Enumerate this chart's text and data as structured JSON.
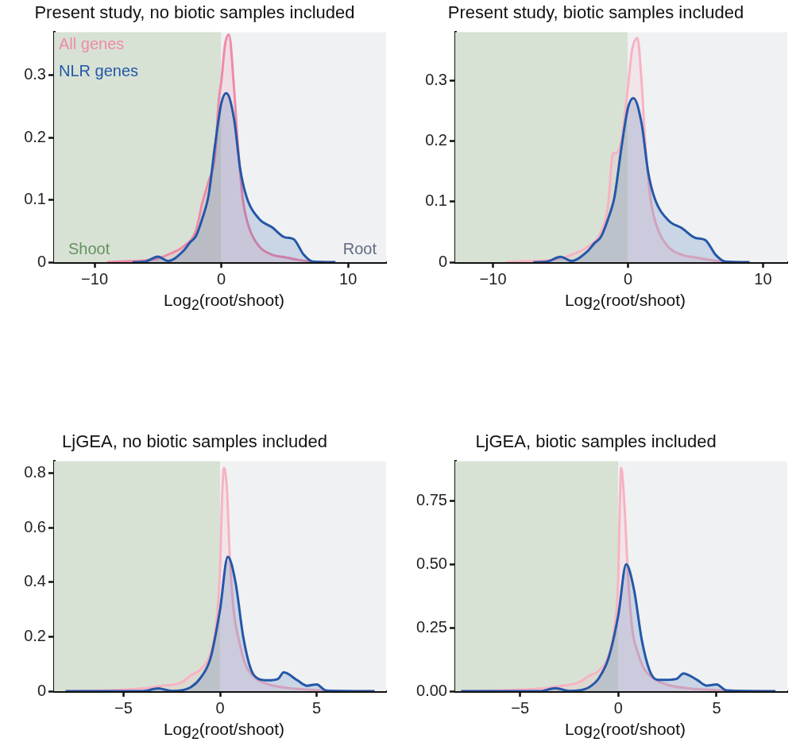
{
  "chart_data": [
    {
      "type": "area",
      "title": "Present study, no biotic samples included",
      "xlabel": "Log$_{2}$(root/shoot)",
      "xlim": [
        -13.2,
        13
      ],
      "xticks": [
        -10,
        0,
        10
      ],
      "ylim": [
        0,
        0.369
      ],
      "yticks": [
        0,
        0.1,
        0.2,
        0.3
      ],
      "legend": "top left",
      "grid": false,
      "bands": [
        {
          "axis": "x",
          "from": -13.2,
          "to": 0,
          "label": "Shoot",
          "color": "#d7e2d5"
        },
        {
          "axis": "x",
          "from": 0,
          "to": 13,
          "label": "Root",
          "color": "#f0f1f3"
        }
      ],
      "series": [
        {
          "name": "All genes",
          "color": "#f08aa8",
          "x": [
            -9,
            -8,
            -6,
            -5,
            -4,
            -3,
            -2,
            -1.5,
            -1,
            -0.5,
            -0.2,
            0,
            0.3,
            0.6,
            1,
            1.3,
            1.7,
            2.2,
            3,
            4,
            5,
            6,
            7,
            9
          ],
          "values": [
            0,
            0.001,
            0.003,
            0.006,
            0.014,
            0.025,
            0.051,
            0.095,
            0.13,
            0.17,
            0.26,
            0.29,
            0.35,
            0.365,
            0.28,
            0.19,
            0.1,
            0.055,
            0.025,
            0.012,
            0.008,
            0.004,
            0.001,
            0
          ]
        },
        {
          "name": "NLR genes",
          "color": "#2457a8",
          "x": [
            -7,
            -6,
            -5,
            -4.2,
            -3,
            -2.5,
            -2,
            -1.5,
            -1,
            -0.5,
            0,
            0.4,
            1,
            1.5,
            2,
            3,
            4,
            5,
            5.7,
            6.5,
            7.2,
            9
          ],
          "values": [
            0,
            0.001,
            0.009,
            0.002,
            0.018,
            0.031,
            0.042,
            0.07,
            0.108,
            0.187,
            0.255,
            0.271,
            0.23,
            0.148,
            0.104,
            0.069,
            0.056,
            0.04,
            0.037,
            0.012,
            0.001,
            0
          ]
        }
      ]
    },
    {
      "type": "area",
      "title": "Present study, biotic samples included",
      "xlabel": "Log$_{2}$(root/shoot)",
      "xlim": [
        -12.8,
        11.8
      ],
      "xticks": [
        -10,
        0,
        10
      ],
      "ylim": [
        0,
        0.38
      ],
      "yticks": [
        0,
        0.1,
        0.2,
        0.3
      ],
      "grid": false,
      "bands": [
        {
          "axis": "x",
          "from": -12.8,
          "to": 0,
          "color": "#d7e2d5"
        },
        {
          "axis": "x",
          "from": 0,
          "to": 11.8,
          "color": "#f0f1f3"
        }
      ],
      "series": [
        {
          "color": "#f7b3c2",
          "x": [
            -9,
            -8,
            -6,
            -5,
            -4,
            -3,
            -2,
            -1.5,
            -1.1,
            -0.9,
            -0.5,
            -0.2,
            0,
            0.3,
            0.7,
            1,
            1.3,
            1.7,
            2.2,
            3,
            4,
            5,
            6,
            7,
            9
          ],
          "values": [
            0,
            0.001,
            0.003,
            0.006,
            0.014,
            0.025,
            0.05,
            0.09,
            0.18,
            0.18,
            0.2,
            0.25,
            0.29,
            0.35,
            0.37,
            0.3,
            0.19,
            0.1,
            0.055,
            0.025,
            0.012,
            0.008,
            0.004,
            0.001,
            0
          ]
        },
        {
          "color": "#2457a8",
          "x": [
            -7,
            -6,
            -5,
            -4.2,
            -3,
            -2.5,
            -2,
            -1.5,
            -1,
            -0.5,
            0,
            0.4,
            1,
            1.5,
            2,
            3,
            4,
            5,
            5.7,
            6.5,
            7.2,
            9
          ],
          "values": [
            0,
            0.001,
            0.009,
            0.002,
            0.018,
            0.031,
            0.042,
            0.07,
            0.108,
            0.187,
            0.255,
            0.271,
            0.23,
            0.148,
            0.104,
            0.069,
            0.056,
            0.04,
            0.037,
            0.012,
            0.001,
            0
          ]
        }
      ]
    },
    {
      "type": "area",
      "title": "LjGEA, no biotic samples included",
      "xlabel": "Log$_{2}$(root/shoot)",
      "xlim": [
        -8.6,
        8.6
      ],
      "xticks": [
        -5,
        0,
        5
      ],
      "ylim": [
        0,
        0.845
      ],
      "yticks": [
        0,
        0.2,
        0.4,
        0.6,
        0.8
      ],
      "grid": false,
      "bands": [
        {
          "axis": "x",
          "from": -8.6,
          "to": 0,
          "color": "#d7e2d5"
        },
        {
          "axis": "x",
          "from": 0,
          "to": 8.6,
          "color": "#f0f1f3"
        }
      ],
      "series": [
        {
          "color": "#f7b3c2",
          "x": [
            -8,
            -6,
            -4,
            -3,
            -2,
            -1.5,
            -1,
            -0.5,
            -0.2,
            0,
            0.1,
            0.2,
            0.35,
            0.5,
            0.7,
            1,
            1.3,
            1.8,
            2.5,
            3.5,
            5,
            7,
            8
          ],
          "values": [
            0,
            0.003,
            0.01,
            0.02,
            0.032,
            0.059,
            0.08,
            0.14,
            0.25,
            0.45,
            0.7,
            0.82,
            0.75,
            0.5,
            0.3,
            0.18,
            0.1,
            0.05,
            0.025,
            0.012,
            0.004,
            0,
            0
          ]
        },
        {
          "color": "#2457a8",
          "x": [
            -8,
            -4,
            -3.2,
            -2.5,
            -2,
            -1.5,
            -1,
            -0.5,
            0,
            0.4,
            0.8,
            1.2,
            1.6,
            2,
            2.5,
            3,
            3.3,
            4,
            4.5,
            5,
            5.5,
            8
          ],
          "values": [
            0,
            0,
            0.01,
            0.001,
            0.003,
            0.015,
            0.05,
            0.12,
            0.3,
            0.494,
            0.4,
            0.2,
            0.08,
            0.045,
            0.04,
            0.045,
            0.069,
            0.04,
            0.02,
            0.025,
            0.002,
            0
          ]
        }
      ]
    },
    {
      "type": "area",
      "title": "LjGEA, biotic samples included",
      "xlabel": "Log$_{2}$(root/shoot)",
      "xlim": [
        -8.3,
        8.6
      ],
      "xticks": [
        -5,
        0,
        5
      ],
      "ylim": [
        0,
        0.907
      ],
      "yticks": [
        {
          "value": 0,
          "label": "0.00"
        },
        {
          "value": 0.25,
          "label": "0.25"
        },
        {
          "value": 0.5,
          "label": "0.50"
        },
        {
          "value": 0.75,
          "label": "0.75"
        }
      ],
      "grid": false,
      "bands": [
        {
          "axis": "x",
          "from": -8.3,
          "to": 0,
          "color": "#d7e2d5"
        },
        {
          "axis": "x",
          "from": 0,
          "to": 8.6,
          "color": "#f0f1f3"
        }
      ],
      "series": [
        {
          "color": "#f7b3c2",
          "x": [
            -8,
            -6,
            -4,
            -3,
            -2,
            -1.5,
            -1,
            -0.5,
            -0.2,
            0,
            0.08,
            0.15,
            0.3,
            0.5,
            0.7,
            1,
            1.3,
            1.8,
            2.5,
            3.5,
            5,
            7,
            8
          ],
          "values": [
            0,
            0.003,
            0.01,
            0.02,
            0.035,
            0.06,
            0.08,
            0.14,
            0.25,
            0.45,
            0.75,
            0.88,
            0.75,
            0.45,
            0.25,
            0.15,
            0.09,
            0.05,
            0.025,
            0.012,
            0.004,
            0,
            0
          ]
        },
        {
          "color": "#2457a8",
          "x": [
            -8,
            -4,
            -3.2,
            -2.5,
            -2,
            -1.5,
            -1,
            -0.5,
            0,
            0.4,
            0.8,
            1.2,
            1.6,
            2,
            2.5,
            3,
            3.3,
            4,
            4.5,
            5,
            5.5,
            8
          ],
          "values": [
            0,
            0,
            0.012,
            0.001,
            0.003,
            0.015,
            0.05,
            0.13,
            0.3,
            0.5,
            0.4,
            0.2,
            0.08,
            0.045,
            0.045,
            0.05,
            0.07,
            0.045,
            0.022,
            0.027,
            0.003,
            0
          ]
        }
      ]
    }
  ]
}
